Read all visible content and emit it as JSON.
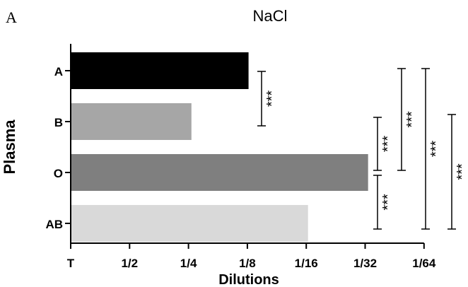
{
  "panel_label": "A",
  "chart_data": {
    "type": "bar",
    "orientation": "horizontal",
    "title": "NaCl",
    "xlabel": "Dilutions",
    "ylabel": "Plasma",
    "x_ticks": [
      "T",
      "1/2",
      "1/4",
      "1/8",
      "1/16",
      "1/32",
      "1/64"
    ],
    "x_scale": "log2 dilution steps (T = 0, 1/2 = 1, ..., 1/64 = 6)",
    "xlim": [
      0,
      6
    ],
    "categories": [
      "A",
      "B",
      "O",
      "AB"
    ],
    "values": [
      3.02,
      2.05,
      5.05,
      4.03
    ],
    "value_labels_as_dilution": [
      "~1/8",
      "~1/4",
      "~1/32",
      "~1/16"
    ],
    "bar_colors": [
      "#000000",
      "#a6a6a6",
      "#7f7f7f",
      "#d9d9d9"
    ],
    "grid": false,
    "legend": "none",
    "significance": [
      {
        "from": "A",
        "to": "B",
        "label": "***"
      },
      {
        "from": "B",
        "to": "O",
        "label": "***"
      },
      {
        "from": "O",
        "to": "AB",
        "label": "***"
      },
      {
        "from": "A",
        "to": "O",
        "label": "***"
      },
      {
        "from": "A",
        "to": "AB",
        "label": "***"
      },
      {
        "from": "B",
        "to": "AB",
        "label": "***"
      }
    ]
  }
}
